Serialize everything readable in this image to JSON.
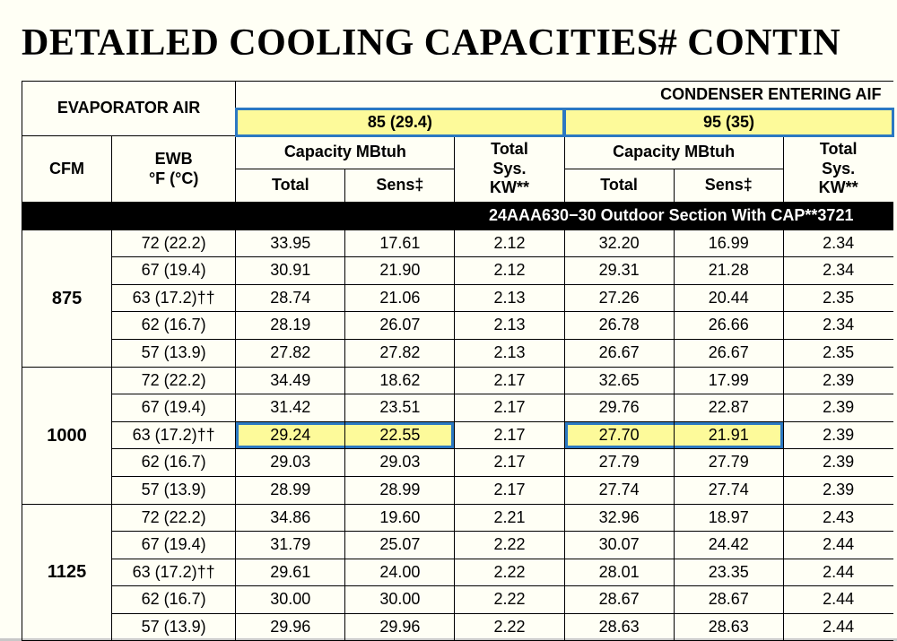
{
  "title": "DETAILED COOLING CAPACITIES# CONTIN",
  "headers": {
    "evap_air": "EVAPORATOR AIR",
    "cond_air": "CONDENSER ENTERING AIF",
    "cfm": "CFM",
    "ewb_l1": "EWB",
    "ewb_l2": "°F (°C)",
    "cap_mbtuh": "Capacity MBtuh",
    "tot_sys_l1": "Total",
    "tot_sys_l2": "Sys.",
    "tot_sys_l3": "KW**",
    "total": "Total",
    "sens": "Sens‡",
    "temp85": "85 (29.4)",
    "temp95": "95 (35)"
  },
  "section_bar": "24AAA630−30 Outdoor Section With CAP**3721",
  "ewb_labels": [
    "72 (22.2)",
    "67 (19.4)",
    "63 (17.2)††",
    "62 (16.7)",
    "57 (13.9)"
  ],
  "groups": [
    {
      "cfm": "875",
      "rows": [
        [
          "33.95",
          "17.61",
          "2.12",
          "32.20",
          "16.99",
          "2.34"
        ],
        [
          "30.91",
          "21.90",
          "2.12",
          "29.31",
          "21.28",
          "2.34"
        ],
        [
          "28.74",
          "21.06",
          "2.13",
          "27.26",
          "20.44",
          "2.35"
        ],
        [
          "28.19",
          "26.07",
          "2.13",
          "26.78",
          "26.66",
          "2.34"
        ],
        [
          "27.82",
          "27.82",
          "2.13",
          "26.67",
          "26.67",
          "2.35"
        ]
      ]
    },
    {
      "cfm": "1000",
      "rows": [
        [
          "34.49",
          "18.62",
          "2.17",
          "32.65",
          "17.99",
          "2.39"
        ],
        [
          "31.42",
          "23.51",
          "2.17",
          "29.76",
          "22.87",
          "2.39"
        ],
        [
          "29.24",
          "22.55",
          "2.17",
          "27.70",
          "21.91",
          "2.39"
        ],
        [
          "29.03",
          "29.03",
          "2.17",
          "27.79",
          "27.79",
          "2.39"
        ],
        [
          "28.99",
          "28.99",
          "2.17",
          "27.74",
          "27.74",
          "2.39"
        ]
      ]
    },
    {
      "cfm": "1125",
      "rows": [
        [
          "34.86",
          "19.60",
          "2.21",
          "32.96",
          "18.97",
          "2.43"
        ],
        [
          "31.79",
          "25.07",
          "2.22",
          "30.07",
          "24.42",
          "2.44"
        ],
        [
          "29.61",
          "24.00",
          "2.22",
          "28.01",
          "23.35",
          "2.44"
        ],
        [
          "30.00",
          "30.00",
          "2.22",
          "28.67",
          "28.67",
          "2.44"
        ],
        [
          "29.96",
          "29.96",
          "2.22",
          "28.63",
          "28.63",
          "2.44"
        ]
      ]
    }
  ],
  "highlights": {
    "temp_header_cells": true,
    "cells": [
      [
        1,
        2,
        0
      ],
      [
        1,
        2,
        1
      ],
      [
        1,
        2,
        3
      ],
      [
        1,
        2,
        4
      ]
    ],
    "box_groups": [
      [
        [
          1,
          2,
          0
        ],
        [
          1,
          2,
          1
        ]
      ],
      [
        [
          1,
          2,
          3
        ],
        [
          1,
          2,
          4
        ]
      ]
    ]
  }
}
